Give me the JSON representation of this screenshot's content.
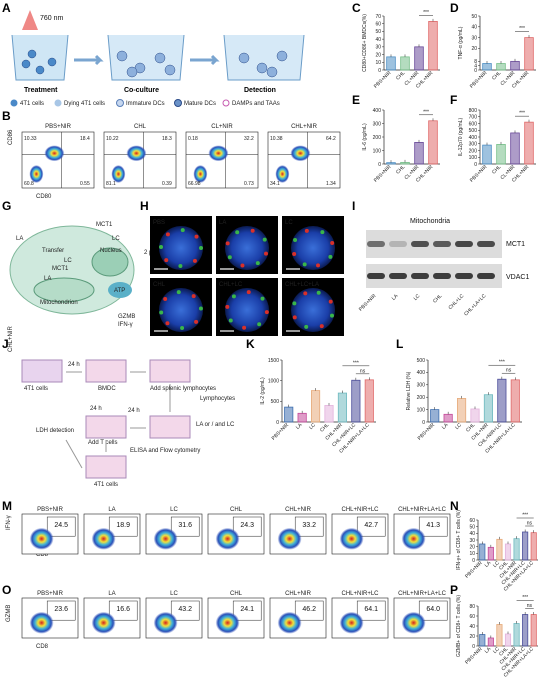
{
  "labels": {
    "panels": [
      "A",
      "B",
      "C",
      "D",
      "E",
      "F",
      "G",
      "H",
      "I",
      "J",
      "K",
      "L",
      "M",
      "N",
      "O",
      "P"
    ]
  },
  "panel_a": {
    "laser": "760 nm",
    "steps": [
      "Treatment",
      "Co-culture",
      "Detection"
    ],
    "legend": [
      "4T1 cells",
      "Dying 4T1 cells",
      "Immature DCs",
      "Mature DCs",
      "DAMPs and TAAs"
    ]
  },
  "panel_b": {
    "groups": [
      "PBS+NIR",
      "CHL",
      "CL+NIR",
      "CHL+NIR"
    ],
    "ylabel": "CD86",
    "xlabel": "CD80",
    "quadrants": [
      [
        "10.33",
        "18.4",
        "60.8",
        "0.55"
      ],
      [
        "10.22",
        "18.3",
        "81.1",
        "0.39"
      ],
      [
        "0.18",
        "32.2",
        "66.98",
        "0.73"
      ],
      [
        "10.38",
        "64.2",
        "34.1",
        "1.34"
      ]
    ]
  },
  "panel_g": {
    "labels": [
      "MCT1",
      "LC",
      "LA",
      "Transfer",
      "Nucleus",
      "MCT1",
      "LC",
      "LA",
      "Mitochondrion",
      "ATP",
      "GZMB",
      "IFN-γ"
    ]
  },
  "panel_h": {
    "groups": [
      "PBS",
      "LA",
      "LC",
      "CHL",
      "CHL+LC",
      "CHL+LC+LA"
    ],
    "scale": "2 μm"
  },
  "panel_i": {
    "title": "Mitochondria",
    "bands": [
      "MCT1",
      "VDAC1"
    ],
    "lanes": [
      "PBS+NIR",
      "LA",
      "LC",
      "CHL",
      "CHL+LC",
      "CHL+LA+LC"
    ]
  },
  "panel_j": {
    "labels": [
      "CHL+NIR",
      "4T1 cells",
      "24 h",
      "BMDC",
      "Add splenic lymphocytes",
      "Lymphocytes",
      "24 h",
      "LA or / and LC",
      "ELISA and Flow cytometry",
      "24 h",
      "Add T cells",
      "LDH detection",
      "4T1 cells"
    ]
  },
  "panel_m": {
    "groups": [
      "PBS+NIR",
      "LA",
      "LC",
      "CHL",
      "CHL+NIR",
      "CHL+NIR+LC",
      "CHL+NIR+LA+LC"
    ],
    "values": [
      "24.5",
      "18.9",
      "31.6",
      "24.3",
      "33.2",
      "42.7",
      "41.3"
    ],
    "ylabel": "IFN-γ",
    "xlabel": "CD8"
  },
  "panel_o": {
    "groups": [
      "PBS+NIR",
      "LA",
      "LC",
      "CHL",
      "CHL+NIR",
      "CHL+NIR+LC",
      "CHL+NIR+LA+LC"
    ],
    "values": [
      "23.6",
      "16.6",
      "43.2",
      "24.1",
      "46.2",
      "64.1",
      "64.0"
    ],
    "ylabel": "GZMB",
    "xlabel": "CD8"
  },
  "colors": {
    "g1": "#4e8fc4",
    "g2": "#77c08a",
    "g3": "#6a4a9a",
    "g4": "#e06a6a",
    "k1": "#3f6fb0",
    "k2": "#c44a9a",
    "k3": "#e7aa7a",
    "k4": "#e3b2dc",
    "k5": "#6fbac0",
    "k6": "#4c4e9a",
    "k7": "#e06a6a"
  },
  "chart_data": [
    {
      "panel": "C",
      "type": "bar",
      "categories": [
        "PBS+NIR",
        "CHL",
        "CL+NIR",
        "CHL+NIR"
      ],
      "values": [
        17,
        17,
        30,
        63
      ],
      "ylabel": "CD80+CD86+ BMDCs(%)",
      "ylim": [
        0,
        70
      ],
      "yticks": [
        0,
        10,
        20,
        30,
        40,
        50,
        60,
        70
      ],
      "sig": "***"
    },
    {
      "panel": "D",
      "type": "bar",
      "categories": [
        "PBS+NIR",
        "CHL",
        "CL+NIR",
        "CHL+NIR"
      ],
      "values": [
        6,
        6,
        8,
        30
      ],
      "ylabel": "TNF-α (pg/mL)",
      "ylim": [
        0,
        50
      ],
      "yticks": [
        0,
        4,
        8,
        20,
        30,
        40,
        50
      ],
      "sig": "***"
    },
    {
      "panel": "E",
      "type": "bar",
      "categories": [
        "PBS+NIR",
        "CHL",
        "CL+NIR",
        "CHL+NIR"
      ],
      "values": [
        10,
        12,
        160,
        320
      ],
      "ylabel": "IL-6 (pg/mL)",
      "ylim": [
        0,
        400
      ],
      "yticks": [
        0,
        100,
        200,
        300,
        400
      ],
      "sig": "***"
    },
    {
      "panel": "F",
      "type": "bar",
      "categories": [
        "PBS+NIR",
        "CHL",
        "CL+NIR",
        "CHL+NIR"
      ],
      "values": [
        280,
        290,
        460,
        620
      ],
      "ylabel": "IL-12p70 (pg/mL)",
      "ylim": [
        0,
        800
      ],
      "yticks": [
        0,
        100,
        200,
        300,
        400,
        500,
        600,
        700,
        800
      ],
      "sig": "***"
    },
    {
      "panel": "K",
      "type": "bar",
      "categories": [
        "PBS+NIR",
        "LA",
        "LC",
        "CHL",
        "CHL+NIR",
        "CHL+NIR+LC",
        "CHL+NIR+LA+LC"
      ],
      "values": [
        360,
        210,
        760,
        400,
        700,
        1010,
        1020
      ],
      "ylabel": "IL-2 (pg/mL)",
      "ylim": [
        0,
        1500
      ],
      "yticks": [
        0,
        500,
        1000,
        1500
      ],
      "sig": [
        "***",
        "ns"
      ]
    },
    {
      "panel": "L",
      "type": "bar",
      "categories": [
        "PBS+NIR",
        "LA",
        "LC",
        "CHL",
        "CHL+NIR",
        "CHL+NIR+LC",
        "CHL+NIR+LA+LC"
      ],
      "values": [
        100,
        62,
        190,
        105,
        220,
        345,
        340
      ],
      "ylabel": "Relative LDH (%)",
      "ylim": [
        0,
        500
      ],
      "yticks": [
        0,
        100,
        200,
        300,
        400,
        500
      ],
      "sig": [
        "***",
        "ns"
      ]
    },
    {
      "panel": "N",
      "type": "bar",
      "categories": [
        "PBS+NIR",
        "LA",
        "LC",
        "CHL",
        "CHL+NIR",
        "CHL+NIR+LC",
        "CHL+NIR+LA+LC"
      ],
      "values": [
        24,
        19,
        31,
        24,
        32,
        42,
        41
      ],
      "ylabel": "IFN-γ+ of CD8+ T cells (%)",
      "ylim": [
        0,
        60
      ],
      "yticks": [
        0,
        10,
        20,
        30,
        40,
        50,
        60
      ],
      "sig": [
        "***",
        "ns"
      ]
    },
    {
      "panel": "P",
      "type": "bar",
      "categories": [
        "PBS+NIR",
        "LA",
        "LC",
        "CHL",
        "CHL+NIR",
        "CHL+NIR+LC",
        "CHL+NIR+LA+LC"
      ],
      "values": [
        23,
        16,
        43,
        24,
        45,
        63,
        63
      ],
      "ylabel": "GZMB+ of CD8+ T cells (%)",
      "ylim": [
        0,
        80
      ],
      "yticks": [
        0,
        20,
        40,
        60,
        80
      ],
      "sig": [
        "***",
        "ns"
      ]
    }
  ]
}
